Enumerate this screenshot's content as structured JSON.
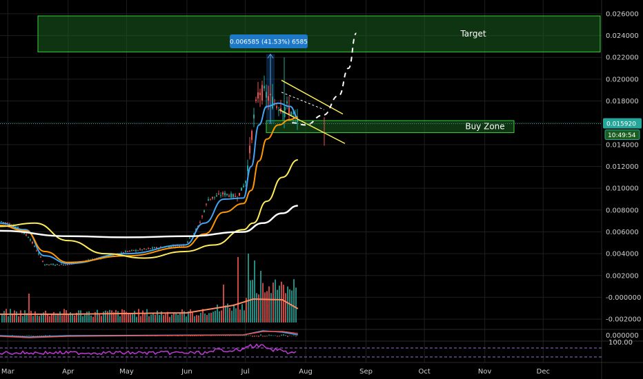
{
  "chart_data": {
    "type": "line",
    "x_labels": [
      "Mar",
      "Apr",
      "May",
      "Jun",
      "Jul",
      "Aug",
      "Sep",
      "Oct",
      "Nov",
      "Dec"
    ],
    "price_axis": {
      "ticks": [
        "0.026000",
        "0.024000",
        "0.022000",
        "0.020000",
        "0.018000",
        "0.016000",
        "0.014000",
        "0.012000",
        "0.010000",
        "0.008000",
        "0.006000",
        "0.004000",
        "0.002000",
        "-0.000000",
        "-0.002000"
      ],
      "tick_values": [
        0.026,
        0.024,
        0.022,
        0.02,
        0.018,
        0.016,
        0.014,
        0.012,
        0.01,
        0.008,
        0.006,
        0.004,
        0.002,
        0.0,
        -0.002
      ],
      "ylim": [
        -0.0025,
        0.0265
      ]
    },
    "indicator_axis": {
      "ticks": [
        "0.000000"
      ]
    },
    "rsi_axis": {
      "ticks": [
        "100.00"
      ]
    },
    "last_price": {
      "value": 0.01592,
      "label": "0.015920",
      "countdown": "10:49:54",
      "color": "#26a69a"
    },
    "measure_tooltip": {
      "text": "0.006585 (41.53%) 6585",
      "color": "#1e78c8"
    },
    "zones": [
      {
        "name": "Target",
        "label": "Target",
        "y_low": 0.0225,
        "y_high": 0.0258,
        "x_start": "2019-03-12",
        "x_end": "2019-12-31",
        "color": "#1b5e20"
      },
      {
        "name": "Buy Zone",
        "label": "Buy Zone",
        "y_low": 0.0151,
        "y_high": 0.0162,
        "x_start": "2019-07-01",
        "x_end": "2019-08-24",
        "color": "#1b5e20"
      }
    ],
    "series": [
      {
        "key": "price",
        "color": "#26a69a",
        "x": [
          "2019-02-25",
          "2019-03-05",
          "2019-03-12",
          "2019-03-20",
          "2019-04-01",
          "2019-04-15",
          "2019-05-01",
          "2019-05-15",
          "2019-05-31",
          "2019-06-07",
          "2019-06-12",
          "2019-06-20",
          "2019-06-27",
          "2019-07-01",
          "2019-07-03",
          "2019-07-05",
          "2019-07-08",
          "2019-07-12",
          "2019-07-16",
          "2019-07-20",
          "2019-07-24",
          "2019-07-28"
        ],
        "y": [
          0.007,
          0.0065,
          0.0055,
          0.003,
          0.003,
          0.0035,
          0.0042,
          0.0045,
          0.0048,
          0.0065,
          0.009,
          0.0095,
          0.0092,
          0.0105,
          0.013,
          0.016,
          0.019,
          0.0185,
          0.0178,
          0.0175,
          0.0172,
          0.0159
        ]
      },
      {
        "key": "ema_fast",
        "color": "#42a5f5",
        "x": [
          "2019-02-25",
          "2019-03-10",
          "2019-03-20",
          "2019-04-01",
          "2019-05-01",
          "2019-05-31",
          "2019-06-10",
          "2019-06-20",
          "2019-06-30",
          "2019-07-04",
          "2019-07-08",
          "2019-07-12",
          "2019-07-18",
          "2019-07-24",
          "2019-07-28"
        ],
        "y": [
          0.0068,
          0.0062,
          0.0038,
          0.0031,
          0.004,
          0.0048,
          0.0068,
          0.009,
          0.0091,
          0.012,
          0.0158,
          0.0175,
          0.0178,
          0.0175,
          0.0165
        ]
      },
      {
        "key": "ema_mid",
        "color": "#ff9800",
        "x": [
          "2019-02-25",
          "2019-03-10",
          "2019-03-20",
          "2019-04-01",
          "2019-05-01",
          "2019-05-31",
          "2019-06-10",
          "2019-06-20",
          "2019-06-30",
          "2019-07-04",
          "2019-07-08",
          "2019-07-12",
          "2019-07-18",
          "2019-07-24",
          "2019-07-28"
        ],
        "y": [
          0.0066,
          0.0061,
          0.0042,
          0.0032,
          0.0038,
          0.0046,
          0.0058,
          0.0078,
          0.0086,
          0.0098,
          0.0125,
          0.0145,
          0.0158,
          0.0163,
          0.0165
        ]
      },
      {
        "key": "ema_slow",
        "color": "#ffee58",
        "x": [
          "2019-02-25",
          "2019-03-15",
          "2019-04-01",
          "2019-04-20",
          "2019-05-10",
          "2019-05-31",
          "2019-06-15",
          "2019-06-30",
          "2019-07-05",
          "2019-07-12",
          "2019-07-20",
          "2019-07-28"
        ],
        "y": [
          0.0065,
          0.0068,
          0.0052,
          0.004,
          0.0036,
          0.0042,
          0.0048,
          0.0062,
          0.0068,
          0.0088,
          0.011,
          0.0126
        ]
      },
      {
        "key": "sma_200",
        "color": "#ffffff",
        "x": [
          "2019-02-25",
          "2019-04-01",
          "2019-05-01",
          "2019-06-01",
          "2019-06-30",
          "2019-07-10",
          "2019-07-20",
          "2019-07-28"
        ],
        "y": [
          0.0061,
          0.0056,
          0.0055,
          0.0056,
          0.006,
          0.0068,
          0.0077,
          0.0084
        ]
      },
      {
        "key": "projection",
        "color": "#ffffff",
        "dashed": true,
        "x": [
          "2019-07-25",
          "2019-08-01",
          "2019-08-10",
          "2019-08-18",
          "2019-08-23",
          "2019-08-27"
        ],
        "y": [
          0.016,
          0.0158,
          0.0167,
          0.0185,
          0.021,
          0.0242
        ]
      }
    ],
    "volume": {
      "bar_color_up": "#26a69a",
      "bar_color_down": "#ef5350",
      "ma_color": "#ff8a65",
      "spikes": [
        {
          "x": "2019-03-12",
          "v": 0.42
        },
        {
          "x": "2019-06-20",
          "v": 0.55
        },
        {
          "x": "2019-06-27",
          "v": 0.95
        },
        {
          "x": "2019-07-03",
          "v": 1.0
        },
        {
          "x": "2019-07-06",
          "v": 0.9
        },
        {
          "x": "2019-07-09",
          "v": 0.75
        }
      ]
    },
    "channel": {
      "color": "#ffee58"
    },
    "grid": true
  }
}
